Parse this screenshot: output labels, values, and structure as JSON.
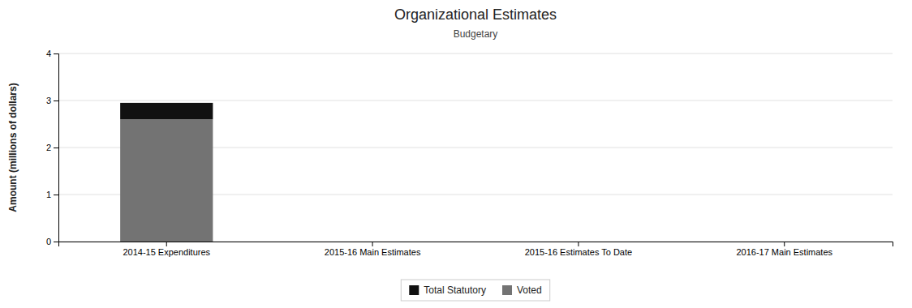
{
  "chart_data": {
    "type": "bar",
    "stacked": true,
    "title": "Organizational Estimates",
    "subtitle": "Budgetary",
    "ylabel": "Amount (millions of dollars)",
    "categories": [
      "2014-15 Expenditures",
      "2015-16 Main Estimates",
      "2015-16 Estimates To Date",
      "2016-17 Main Estimates"
    ],
    "series": [
      {
        "name": "Voted",
        "color": "#737373",
        "values": [
          2.6,
          0,
          0,
          0
        ]
      },
      {
        "name": "Total Statutory",
        "color": "#111111",
        "values": [
          0.35,
          0,
          0,
          0
        ]
      }
    ],
    "ylim": [
      0,
      4
    ],
    "yticks": [
      0,
      1,
      2,
      3,
      4
    ],
    "grid": true,
    "legend": "bottom"
  }
}
